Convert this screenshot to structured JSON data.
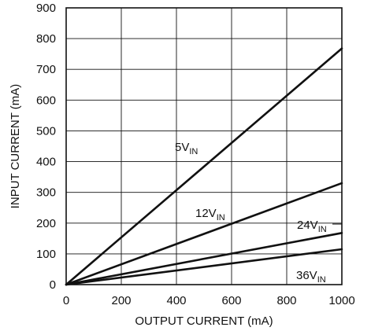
{
  "chart_data": {
    "type": "line",
    "xlabel": "OUTPUT CURRENT (mA)",
    "ylabel": "INPUT CURRENT (mA)",
    "xlim": [
      0,
      1000
    ],
    "ylim": [
      0,
      900
    ],
    "x_ticks": [
      0,
      200,
      400,
      600,
      800,
      1000
    ],
    "y_ticks": [
      0,
      100,
      200,
      300,
      400,
      500,
      600,
      700,
      800,
      900
    ],
    "grid": true,
    "legend": "none",
    "line_color": "#111111",
    "series": [
      {
        "name": "5V",
        "subscript": "IN",
        "x": [
          0,
          1000
        ],
        "y": [
          0,
          768
        ]
      },
      {
        "name": "12V",
        "subscript": "IN",
        "x": [
          0,
          1000
        ],
        "y": [
          0,
          330
        ]
      },
      {
        "name": "24V",
        "subscript": "IN",
        "x": [
          0,
          1000
        ],
        "y": [
          0,
          168
        ]
      },
      {
        "name": "36V",
        "subscript": "IN",
        "x": [
          0,
          1000
        ],
        "y": [
          0,
          115
        ]
      }
    ]
  }
}
